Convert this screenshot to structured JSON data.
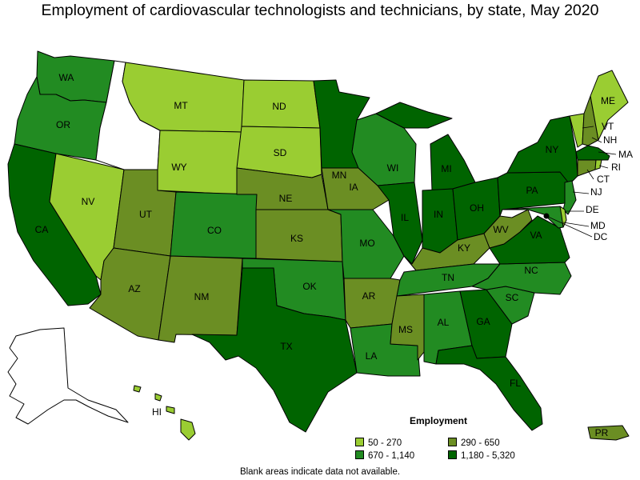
{
  "title": "Employment of cardiovascular technologists and technicians, by state, May 2020",
  "legend": {
    "title": "Employment",
    "items": [
      {
        "label": "50 - 270",
        "color": "#9acd32"
      },
      {
        "label": "290 - 650",
        "color": "#6b8e23"
      },
      {
        "label": "670 - 1,140",
        "color": "#228b22"
      },
      {
        "label": "1,180 - 5,320",
        "color": "#006400"
      }
    ]
  },
  "footnote": "Blank areas indicate data not available.",
  "states": {
    "WA": {
      "label": "WA",
      "color": "#228b22"
    },
    "OR": {
      "label": "OR",
      "color": "#228b22"
    },
    "CA": {
      "label": "CA",
      "color": "#006400"
    },
    "NV": {
      "label": "NV",
      "color": "#9acd32"
    },
    "ID": {
      "label": "",
      "color": "#ffffff"
    },
    "MT": {
      "label": "MT",
      "color": "#9acd32"
    },
    "WY": {
      "label": "WY",
      "color": "#9acd32"
    },
    "UT": {
      "label": "UT",
      "color": "#6b8e23"
    },
    "AZ": {
      "label": "AZ",
      "color": "#6b8e23"
    },
    "CO": {
      "label": "CO",
      "color": "#228b22"
    },
    "NM": {
      "label": "NM",
      "color": "#6b8e23"
    },
    "ND": {
      "label": "ND",
      "color": "#9acd32"
    },
    "SD": {
      "label": "SD",
      "color": "#9acd32"
    },
    "NE": {
      "label": "NE",
      "color": "#6b8e23"
    },
    "KS": {
      "label": "KS",
      "color": "#6b8e23"
    },
    "OK": {
      "label": "OK",
      "color": "#228b22"
    },
    "TX": {
      "label": "TX",
      "color": "#006400"
    },
    "MN": {
      "label": "MN",
      "color": "#006400"
    },
    "IA": {
      "label": "IA",
      "color": "#6b8e23"
    },
    "MO": {
      "label": "MO",
      "color": "#228b22"
    },
    "AR": {
      "label": "AR",
      "color": "#6b8e23"
    },
    "LA": {
      "label": "LA",
      "color": "#228b22"
    },
    "WI": {
      "label": "WI",
      "color": "#228b22"
    },
    "IL": {
      "label": "IL",
      "color": "#006400"
    },
    "MI": {
      "label": "MI",
      "color": "#006400"
    },
    "IN": {
      "label": "IN",
      "color": "#006400"
    },
    "OH": {
      "label": "OH",
      "color": "#006400"
    },
    "KY": {
      "label": "KY",
      "color": "#6b8e23"
    },
    "TN": {
      "label": "TN",
      "color": "#228b22"
    },
    "MS": {
      "label": "MS",
      "color": "#6b8e23"
    },
    "AL": {
      "label": "AL",
      "color": "#228b22"
    },
    "GA": {
      "label": "GA",
      "color": "#006400"
    },
    "FL": {
      "label": "FL",
      "color": "#006400"
    },
    "SC": {
      "label": "SC",
      "color": "#228b22"
    },
    "NC": {
      "label": "NC",
      "color": "#228b22"
    },
    "VA": {
      "label": "VA",
      "color": "#006400"
    },
    "WV": {
      "label": "WV",
      "color": "#6b8e23"
    },
    "PA": {
      "label": "PA",
      "color": "#006400"
    },
    "NY": {
      "label": "NY",
      "color": "#006400"
    },
    "NJ": {
      "label": "NJ",
      "color": "#228b22"
    },
    "DE": {
      "label": "DE",
      "color": "#9acd32"
    },
    "MD": {
      "label": "MD",
      "color": "#228b22"
    },
    "DC": {
      "label": "DC",
      "color": "#000000"
    },
    "CT": {
      "label": "CT",
      "color": "#6b8e23"
    },
    "RI": {
      "label": "RI",
      "color": "#9acd32"
    },
    "MA": {
      "label": "MA",
      "color": "#006400"
    },
    "VT": {
      "label": "VT",
      "color": "#9acd32"
    },
    "NH": {
      "label": "NH",
      "color": "#6b8e23"
    },
    "ME": {
      "label": "ME",
      "color": "#9acd32"
    },
    "AK": {
      "label": "",
      "color": "#ffffff"
    },
    "HI": {
      "label": "HI",
      "color": "#9acd32"
    },
    "PR": {
      "label": "PR",
      "color": "#6b8e23"
    }
  }
}
